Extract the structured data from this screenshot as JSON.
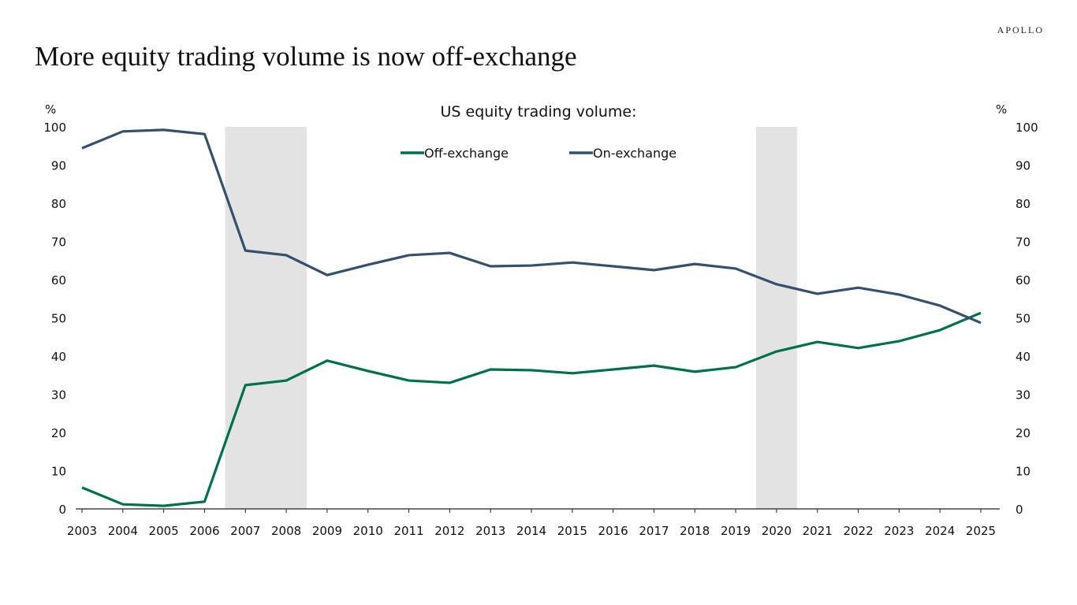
{
  "header": {
    "title": "More equity trading volume is now off-exchange",
    "logo": "APOLLO"
  },
  "chart_data": {
    "type": "line",
    "title": "US equity trading volume:",
    "ylabel_left": "%",
    "ylabel_right": "%",
    "ylim": [
      0,
      100
    ],
    "yticks": [
      0,
      10,
      20,
      30,
      40,
      50,
      60,
      70,
      80,
      90,
      100
    ],
    "x": [
      2003,
      2004,
      2005,
      2006,
      2007,
      2008,
      2009,
      2010,
      2011,
      2012,
      2013,
      2014,
      2015,
      2016,
      2017,
      2018,
      2019,
      2020,
      2021,
      2022,
      2023,
      2024,
      2025
    ],
    "legend_position": "top-center",
    "grid": false,
    "shaded_periods": [
      [
        2006.5,
        2008.5
      ],
      [
        2019.5,
        2020.5
      ]
    ],
    "series": [
      {
        "name": "Off-exchange",
        "color": "#00704f",
        "values": [
          5.6,
          1.2,
          0.8,
          1.9,
          32.4,
          33.6,
          38.8,
          36.1,
          33.6,
          33.0,
          36.5,
          36.3,
          35.5,
          36.5,
          37.5,
          35.9,
          37.1,
          41.2,
          43.7,
          42.1,
          43.9,
          46.8,
          51.3
        ]
      },
      {
        "name": "On-exchange",
        "color": "#34506e",
        "values": [
          94.4,
          98.8,
          99.2,
          98.1,
          67.6,
          66.4,
          61.2,
          63.9,
          66.4,
          67.0,
          63.5,
          63.7,
          64.5,
          63.5,
          62.5,
          64.1,
          62.9,
          58.8,
          56.3,
          57.9,
          56.1,
          53.2,
          48.7
        ]
      }
    ]
  }
}
